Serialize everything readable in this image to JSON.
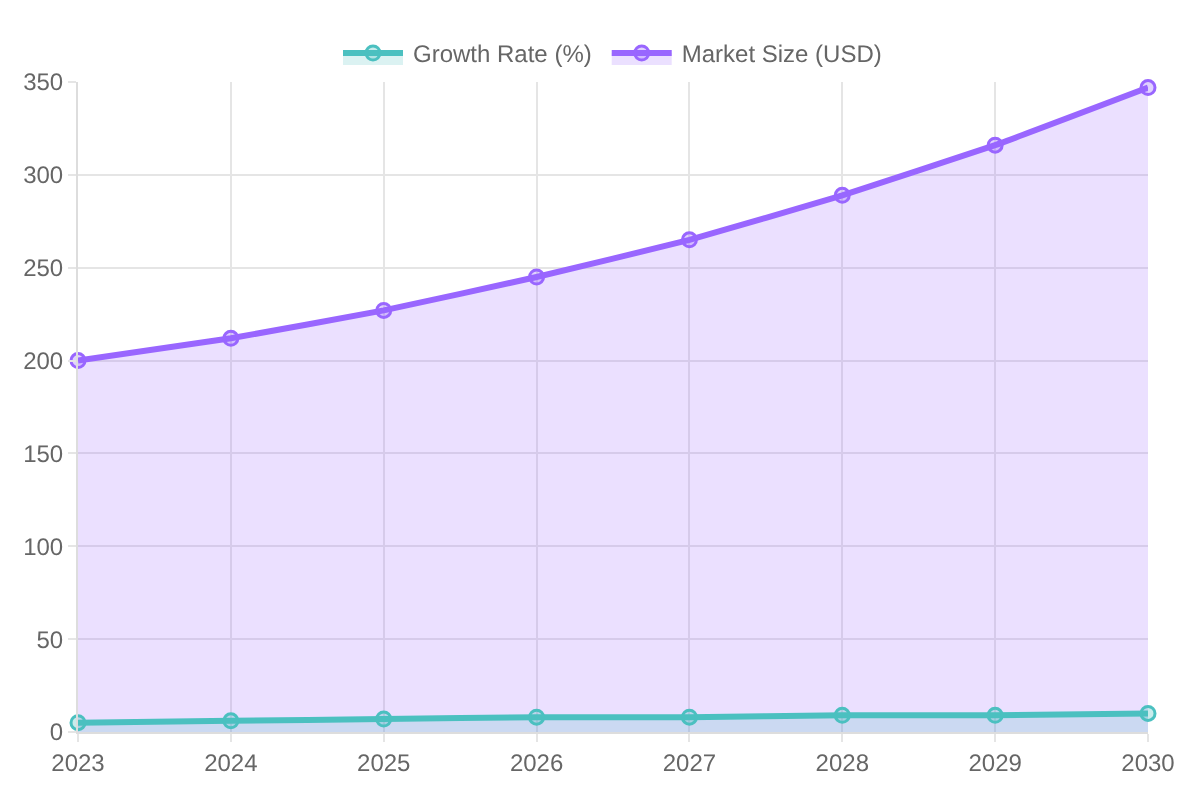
{
  "chart_data": {
    "type": "area",
    "categories": [
      "2023",
      "2024",
      "2025",
      "2026",
      "2027",
      "2028",
      "2029",
      "2030"
    ],
    "series": [
      {
        "name": "Growth Rate (%)",
        "color": "#4bc0c0",
        "values": [
          5,
          6,
          7,
          8,
          8,
          9,
          9,
          10
        ]
      },
      {
        "name": "Market Size (USD)",
        "color": "#9966ff",
        "values": [
          200,
          212,
          227,
          245,
          265,
          289,
          316,
          347
        ]
      }
    ],
    "ylim": [
      0,
      350
    ],
    "yticks": [
      0,
      50,
      100,
      150,
      200,
      250,
      300,
      350
    ],
    "grid": true,
    "legend": "top",
    "marker": "circle",
    "line_style": "solid"
  }
}
